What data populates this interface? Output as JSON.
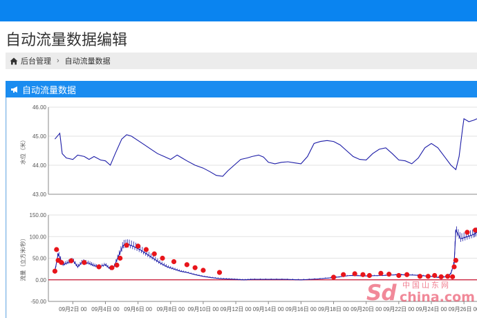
{
  "page": {
    "title": "自动流量数据编辑"
  },
  "breadcrumb": {
    "home_icon": "home-icon",
    "items": [
      "后台管理",
      "自动流量数据"
    ]
  },
  "panel": {
    "icon": "bullhorn-icon",
    "title": "自动流量数据"
  },
  "colors": {
    "topbar": "#0a84f0",
    "panel_header": "#1a8cf0",
    "line": "#1a1aa6",
    "marker": "#e8151b",
    "zero_line": "#c8102e"
  },
  "watermark": {
    "brand": "Sd",
    "cn": "中国山东网",
    "domain": "china.com"
  },
  "chart_data": [
    {
      "type": "line",
      "ylabel": "水位（米）",
      "ylim": [
        43.0,
        46.0
      ],
      "yticks": [
        "46.00",
        "45.00",
        "44.00",
        "43.00"
      ],
      "xlim": [
        0.5,
        26.8
      ],
      "series": [
        {
          "x": [
            0.9,
            1.2,
            1.35,
            1.6,
            2.0,
            2.3,
            2.7,
            3.0,
            3.3,
            3.7,
            4.0,
            4.3,
            4.6,
            5.0,
            5.3,
            5.6,
            6.0,
            6.4,
            6.8,
            7.2,
            7.6,
            8.0,
            8.4,
            8.7,
            9.0,
            9.5,
            10.0,
            10.4,
            10.8,
            11.2,
            11.5,
            11.9,
            12.3,
            12.7,
            13.0,
            13.4,
            13.7,
            14.0,
            14.4,
            14.8,
            15.2,
            15.6,
            16.0,
            16.4,
            16.8,
            17.2,
            17.6,
            18.0,
            18.4,
            18.8,
            19.2,
            19.6,
            20.0,
            20.4,
            20.8,
            21.2,
            21.6,
            22.0,
            22.4,
            22.8,
            23.2,
            23.6,
            24.0,
            24.4,
            24.8,
            25.2,
            25.5,
            25.7,
            25.9,
            26.0,
            26.3,
            26.6,
            26.8
          ],
          "y": [
            44.9,
            45.1,
            44.4,
            44.25,
            44.2,
            44.35,
            44.3,
            44.2,
            44.3,
            44.18,
            44.15,
            44.0,
            44.4,
            44.9,
            45.05,
            45.0,
            44.85,
            44.7,
            44.55,
            44.4,
            44.3,
            44.2,
            44.35,
            44.25,
            44.15,
            44.0,
            43.9,
            43.78,
            43.65,
            43.62,
            43.8,
            44.0,
            44.2,
            44.25,
            44.3,
            44.35,
            44.28,
            44.1,
            44.05,
            44.1,
            44.12,
            44.08,
            44.05,
            44.3,
            44.75,
            44.82,
            44.85,
            44.82,
            44.7,
            44.5,
            44.3,
            44.2,
            44.18,
            44.4,
            44.55,
            44.6,
            44.4,
            44.18,
            44.15,
            44.05,
            44.25,
            44.6,
            44.75,
            44.6,
            44.3,
            44.0,
            43.85,
            44.3,
            45.2,
            45.6,
            45.5,
            45.55,
            45.6
          ],
          "fine_noise": true
        }
      ]
    },
    {
      "type": "line",
      "ylabel": "流量（立方米/秒）",
      "ylim": [
        -50.0,
        150.0
      ],
      "yticks": [
        "150.00",
        "100.00",
        "50.00",
        "0.00",
        "-50.00"
      ],
      "xlim": [
        0.5,
        26.8
      ],
      "xticks": [
        "09月2日 00",
        "09月4日 00",
        "09月6日 00",
        "09月8日 00",
        "09月10日 00",
        "09月12日 00",
        "09月14日 00",
        "09月16日 00",
        "09月18日 00",
        "09月20日 00",
        "09月22日 00",
        "09月24日 00",
        "09月26日 00"
      ],
      "xtick_positions": [
        2,
        4,
        6,
        8,
        10,
        12,
        14,
        16,
        18,
        20,
        22,
        24,
        26
      ],
      "zero_line": 0,
      "series": [
        {
          "x": [
            0.9,
            1.1,
            1.4,
            1.7,
            2.0,
            2.3,
            2.6,
            3.0,
            3.3,
            3.6,
            4.0,
            4.3,
            4.5,
            4.8,
            5.1,
            5.4,
            5.8,
            6.2,
            6.6,
            7.0,
            7.4,
            7.8,
            8.2,
            8.6,
            9.0,
            9.5,
            10.0,
            10.5,
            11.0,
            11.5,
            12.0,
            12.5,
            13.0,
            14.0,
            15.0,
            16.0,
            17.0,
            18.0,
            19.0,
            20.0,
            21.0,
            22.0,
            23.0,
            24.0,
            24.5,
            25.0,
            25.2,
            25.4,
            25.5,
            25.8,
            26.2,
            26.6,
            26.8
          ],
          "y": [
            20,
            60,
            35,
            40,
            45,
            30,
            42,
            38,
            33,
            30,
            35,
            25,
            28,
            55,
            80,
            82,
            76,
            68,
            58,
            48,
            38,
            30,
            25,
            20,
            17,
            12,
            8,
            5,
            3,
            2,
            1,
            0,
            1,
            1,
            1,
            0,
            2,
            5,
            10,
            9,
            10,
            12,
            11,
            8,
            5,
            8,
            15,
            40,
            115,
            95,
            100,
            105,
            110
          ]
        }
      ],
      "markers": {
        "x": [
          0.9,
          1.0,
          1.1,
          1.3,
          1.9,
          2.7,
          3.6,
          4.4,
          4.7,
          4.9,
          5.3,
          6.0,
          6.5,
          7.0,
          7.5,
          8.2,
          9.0,
          9.5,
          10.0,
          11.0,
          18.0,
          18.6,
          19.3,
          19.8,
          20.2,
          20.9,
          21.4,
          22.0,
          22.5,
          23.3,
          23.8,
          24.2,
          24.6,
          25.0,
          25.3,
          25.4,
          25.5,
          26.2,
          26.7
        ],
        "y": [
          20,
          70,
          45,
          40,
          44,
          40,
          30,
          28,
          34,
          50,
          80,
          78,
          70,
          60,
          50,
          42,
          35,
          28,
          22,
          17,
          6,
          12,
          14,
          12,
          10,
          15,
          13,
          10,
          12,
          8,
          8,
          10,
          7,
          8,
          7,
          30,
          45,
          110,
          115
        ]
      }
    }
  ]
}
